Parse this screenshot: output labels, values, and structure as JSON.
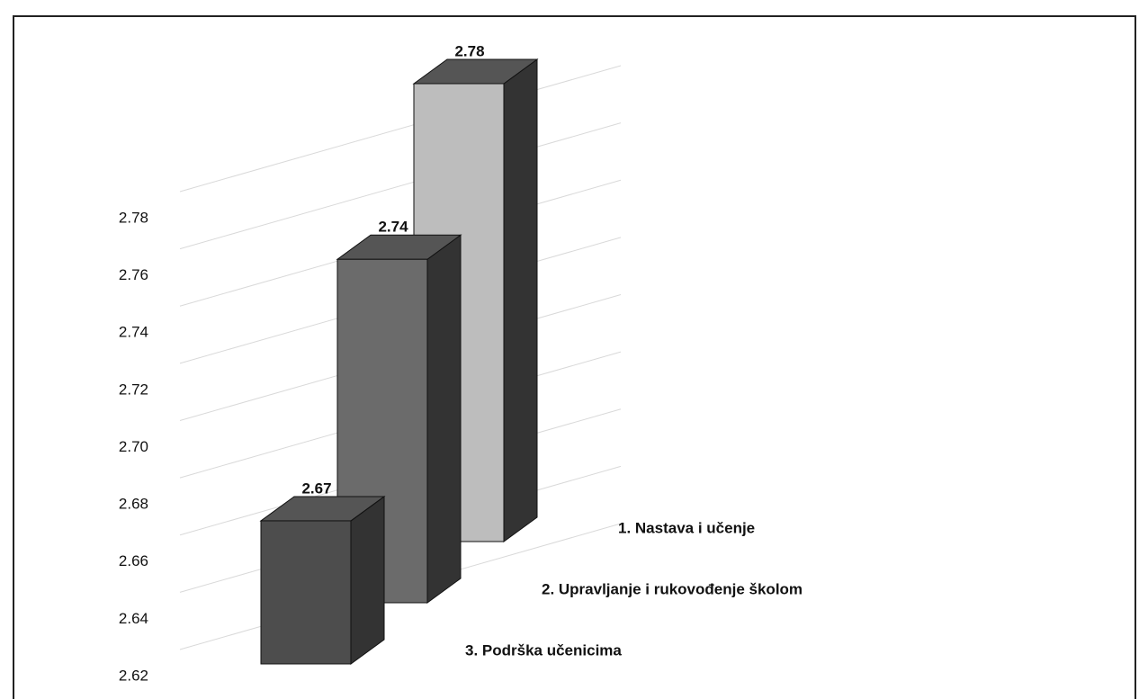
{
  "chart_data": {
    "type": "bar3d",
    "categories": [
      "1. Nastava i učenje",
      "2. Upravljanje i rukovođenje školom",
      "3. Podrška učenicima"
    ],
    "values": [
      2.78,
      2.74,
      2.67
    ],
    "colors": [
      "#bdbdbd",
      "#6b6b6b",
      "#4d4d4d"
    ],
    "ylim": [
      2.62,
      2.78
    ],
    "yticks": [
      2.62,
      2.64,
      2.66,
      2.68,
      {
        "value": 2.7,
        "label": "2.70"
      },
      2.72,
      2.74,
      2.76,
      2.78
    ],
    "grid": true
  }
}
